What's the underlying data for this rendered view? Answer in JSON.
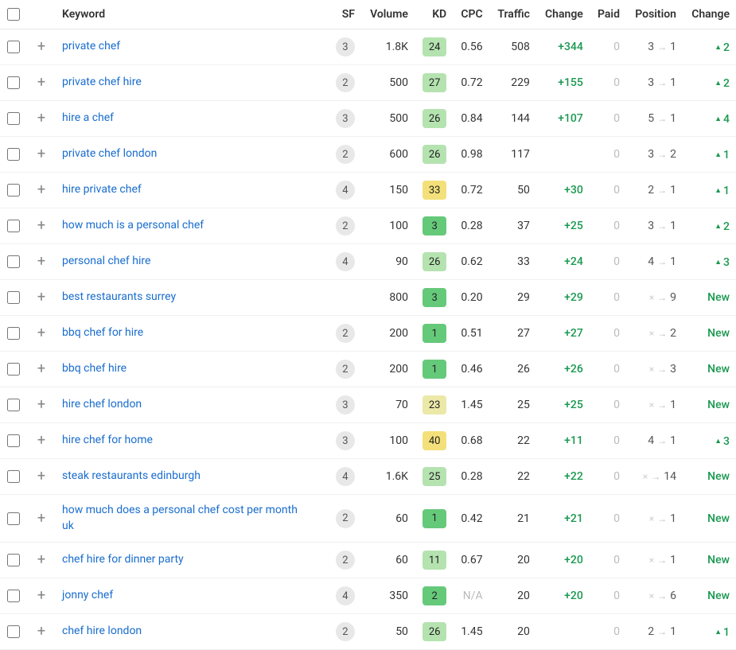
{
  "columns": {
    "keyword": "Keyword",
    "sf": "SF",
    "volume": "Volume",
    "kd": "KD",
    "cpc": "CPC",
    "traffic": "Traffic",
    "change": "Change",
    "paid": "Paid",
    "position": "Position",
    "poschange": "Change"
  },
  "kd_colors": {
    "green_strong": "#65c97a",
    "green_light": "#b5e3b0",
    "yellow": "#f3e07a",
    "yellow_light": "#ece8a8"
  },
  "rows": [
    {
      "keyword": "private chef",
      "sf": "3",
      "volume": "1.8K",
      "kd": "24",
      "kd_style": "green_light",
      "cpc": "0.56",
      "traffic": "508",
      "change": "+344",
      "paid": "0",
      "pos_from": "3",
      "pos_to": "1",
      "poschange": "2",
      "poschange_type": "up"
    },
    {
      "keyword": "private chef hire",
      "sf": "2",
      "volume": "500",
      "kd": "27",
      "kd_style": "green_light",
      "cpc": "0.72",
      "traffic": "229",
      "change": "+155",
      "paid": "0",
      "pos_from": "3",
      "pos_to": "1",
      "poschange": "2",
      "poschange_type": "up"
    },
    {
      "keyword": "hire a chef",
      "sf": "3",
      "volume": "500",
      "kd": "26",
      "kd_style": "green_light",
      "cpc": "0.84",
      "traffic": "144",
      "change": "+107",
      "paid": "0",
      "pos_from": "5",
      "pos_to": "1",
      "poschange": "4",
      "poschange_type": "up"
    },
    {
      "keyword": "private chef london",
      "sf": "2",
      "volume": "600",
      "kd": "26",
      "kd_style": "green_light",
      "cpc": "0.98",
      "traffic": "117",
      "change": "",
      "paid": "0",
      "pos_from": "3",
      "pos_to": "2",
      "poschange": "1",
      "poschange_type": "up"
    },
    {
      "keyword": "hire private chef",
      "sf": "4",
      "volume": "150",
      "kd": "33",
      "kd_style": "yellow",
      "cpc": "0.72",
      "traffic": "50",
      "change": "+30",
      "paid": "0",
      "pos_from": "2",
      "pos_to": "1",
      "poschange": "1",
      "poschange_type": "up"
    },
    {
      "keyword": "how much is a personal chef",
      "sf": "2",
      "volume": "100",
      "kd": "3",
      "kd_style": "green_strong",
      "cpc": "0.28",
      "traffic": "37",
      "change": "+25",
      "paid": "0",
      "pos_from": "3",
      "pos_to": "1",
      "poschange": "2",
      "poschange_type": "up"
    },
    {
      "keyword": "personal chef hire",
      "sf": "4",
      "volume": "90",
      "kd": "26",
      "kd_style": "green_light",
      "cpc": "0.62",
      "traffic": "33",
      "change": "+24",
      "paid": "0",
      "pos_from": "4",
      "pos_to": "1",
      "poschange": "3",
      "poschange_type": "up"
    },
    {
      "keyword": "best restaurants surrey",
      "sf": "",
      "volume": "800",
      "kd": "3",
      "kd_style": "green_strong",
      "cpc": "0.20",
      "traffic": "29",
      "change": "+29",
      "paid": "0",
      "pos_from": "x",
      "pos_to": "9",
      "poschange": "New",
      "poschange_type": "new"
    },
    {
      "keyword": "bbq chef for hire",
      "sf": "2",
      "volume": "200",
      "kd": "1",
      "kd_style": "green_strong",
      "cpc": "0.51",
      "traffic": "27",
      "change": "+27",
      "paid": "0",
      "pos_from": "x",
      "pos_to": "2",
      "poschange": "New",
      "poschange_type": "new"
    },
    {
      "keyword": "bbq chef hire",
      "sf": "2",
      "volume": "200",
      "kd": "1",
      "kd_style": "green_strong",
      "cpc": "0.46",
      "traffic": "26",
      "change": "+26",
      "paid": "0",
      "pos_from": "x",
      "pos_to": "3",
      "poschange": "New",
      "poschange_type": "new"
    },
    {
      "keyword": "hire chef london",
      "sf": "3",
      "volume": "70",
      "kd": "23",
      "kd_style": "yellow_light",
      "cpc": "1.45",
      "traffic": "25",
      "change": "+25",
      "paid": "0",
      "pos_from": "x",
      "pos_to": "1",
      "poschange": "New",
      "poschange_type": "new"
    },
    {
      "keyword": "hire chef for home",
      "sf": "3",
      "volume": "100",
      "kd": "40",
      "kd_style": "yellow",
      "cpc": "0.68",
      "traffic": "22",
      "change": "+11",
      "paid": "0",
      "pos_from": "4",
      "pos_to": "1",
      "poschange": "3",
      "poschange_type": "up"
    },
    {
      "keyword": "steak restaurants edinburgh",
      "sf": "4",
      "volume": "1.6K",
      "kd": "25",
      "kd_style": "green_light",
      "cpc": "0.28",
      "traffic": "22",
      "change": "+22",
      "paid": "0",
      "pos_from": "x",
      "pos_to": "14",
      "poschange": "New",
      "poschange_type": "new"
    },
    {
      "keyword": "how much does a personal chef cost per month uk",
      "sf": "2",
      "volume": "60",
      "kd": "1",
      "kd_style": "green_strong",
      "cpc": "0.42",
      "traffic": "21",
      "change": "+21",
      "paid": "0",
      "pos_from": "x",
      "pos_to": "1",
      "poschange": "New",
      "poschange_type": "new"
    },
    {
      "keyword": "chef hire for dinner party",
      "sf": "2",
      "volume": "60",
      "kd": "11",
      "kd_style": "green_light",
      "cpc": "0.67",
      "traffic": "20",
      "change": "+20",
      "paid": "0",
      "pos_from": "x",
      "pos_to": "1",
      "poschange": "New",
      "poschange_type": "new"
    },
    {
      "keyword": "jonny chef",
      "sf": "4",
      "volume": "350",
      "kd": "2",
      "kd_style": "green_strong",
      "cpc": "N/A",
      "traffic": "20",
      "change": "+20",
      "paid": "0",
      "pos_from": "x",
      "pos_to": "6",
      "poschange": "New",
      "poschange_type": "new"
    },
    {
      "keyword": "chef hire london",
      "sf": "2",
      "volume": "50",
      "kd": "26",
      "kd_style": "green_light",
      "cpc": "1.45",
      "traffic": "20",
      "change": "",
      "paid": "0",
      "pos_from": "2",
      "pos_to": "1",
      "poschange": "1",
      "poschange_type": "up"
    }
  ]
}
